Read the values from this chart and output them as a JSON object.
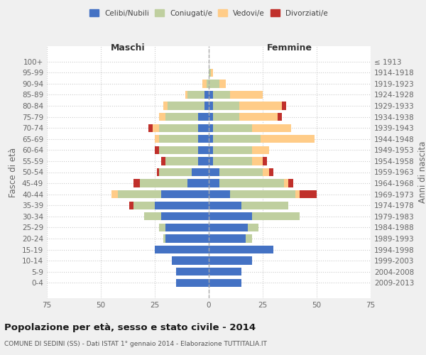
{
  "age_groups": [
    "100+",
    "95-99",
    "90-94",
    "85-89",
    "80-84",
    "75-79",
    "70-74",
    "65-69",
    "60-64",
    "55-59",
    "50-54",
    "45-49",
    "40-44",
    "35-39",
    "30-34",
    "25-29",
    "20-24",
    "15-19",
    "10-14",
    "5-9",
    "0-4"
  ],
  "birth_years": [
    "≤ 1913",
    "1914-1918",
    "1919-1923",
    "1924-1928",
    "1929-1933",
    "1934-1938",
    "1939-1943",
    "1944-1948",
    "1949-1953",
    "1954-1958",
    "1959-1963",
    "1964-1968",
    "1969-1973",
    "1974-1978",
    "1979-1983",
    "1984-1988",
    "1989-1993",
    "1994-1998",
    "1999-2003",
    "2004-2008",
    "2009-2013"
  ],
  "maschi_celibi": [
    0,
    0,
    0,
    2,
    2,
    5,
    5,
    5,
    5,
    5,
    8,
    10,
    22,
    25,
    22,
    20,
    20,
    25,
    17,
    15,
    15
  ],
  "maschi_coniugati": [
    0,
    0,
    1,
    8,
    17,
    15,
    18,
    18,
    18,
    15,
    15,
    22,
    20,
    10,
    8,
    3,
    1,
    0,
    0,
    0,
    0
  ],
  "maschi_vedovi": [
    0,
    0,
    2,
    1,
    2,
    3,
    3,
    2,
    0,
    0,
    0,
    0,
    3,
    0,
    0,
    0,
    0,
    0,
    0,
    0,
    0
  ],
  "maschi_divorziati": [
    0,
    0,
    0,
    0,
    0,
    0,
    2,
    0,
    2,
    2,
    1,
    3,
    0,
    2,
    0,
    0,
    0,
    0,
    0,
    0,
    0
  ],
  "femmine_nubili": [
    0,
    0,
    0,
    2,
    2,
    2,
    2,
    2,
    2,
    2,
    5,
    5,
    10,
    15,
    20,
    18,
    17,
    30,
    20,
    15,
    15
  ],
  "femmine_coniugate": [
    0,
    1,
    5,
    8,
    12,
    12,
    18,
    22,
    18,
    18,
    20,
    30,
    30,
    22,
    22,
    5,
    3,
    0,
    0,
    0,
    0
  ],
  "femmine_vedove": [
    0,
    1,
    3,
    15,
    20,
    18,
    18,
    25,
    8,
    5,
    3,
    2,
    2,
    0,
    0,
    0,
    0,
    0,
    0,
    0,
    0
  ],
  "femmine_divorziate": [
    0,
    0,
    0,
    0,
    2,
    2,
    0,
    0,
    0,
    2,
    2,
    2,
    8,
    0,
    0,
    0,
    0,
    0,
    0,
    0,
    0
  ],
  "col_celibi": "#4472C4",
  "col_coniugati": "#BFCF9F",
  "col_vedovi": "#FFCC88",
  "col_divorziati": "#C0302B",
  "title": "Popolazione per età, sesso e stato civile - 2014",
  "subtitle": "COMUNE DI SEDINI (SS) - Dati ISTAT 1° gennaio 2014 - Elaborazione TUTTITALIA.IT",
  "xlim": 75,
  "bg_color": "#f0f0f0"
}
